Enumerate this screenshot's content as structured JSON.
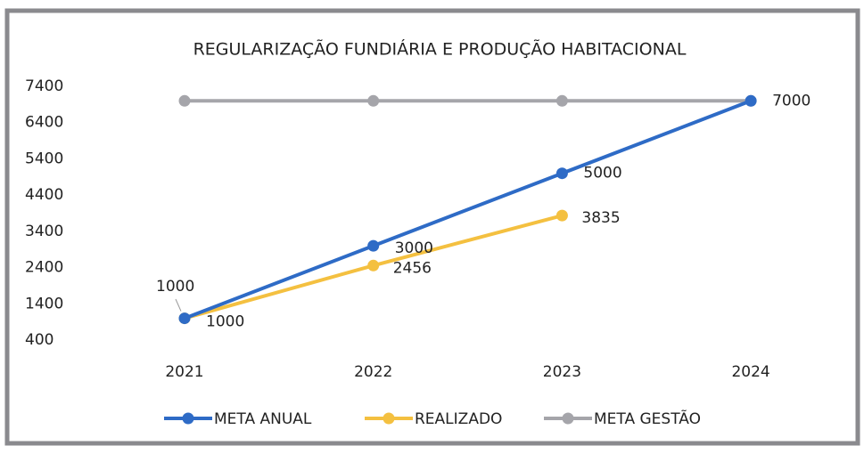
{
  "chart_data": {
    "type": "line",
    "title": "REGULARIZAÇÃO FUNDIÁRIA E PRODUÇÃO HABITACIONAL",
    "categories": [
      "2021",
      "2022",
      "2023",
      "2024"
    ],
    "series": [
      {
        "name": "META ANUAL",
        "color": "#2e6bc6",
        "values": [
          1000,
          3000,
          5000,
          7000
        ]
      },
      {
        "name": "REALIZADO",
        "color": "#f4c040",
        "values": [
          1000,
          2456,
          3835,
          null
        ]
      },
      {
        "name": "META GESTÃO",
        "color": "#a5a5aa",
        "values": [
          7000,
          7000,
          7000,
          7000
        ]
      }
    ],
    "ylim": [
      400,
      7400
    ],
    "yticks": [
      400,
      1400,
      2400,
      3400,
      4400,
      5400,
      6400,
      7400
    ],
    "grid": false,
    "legend": "bottom"
  }
}
